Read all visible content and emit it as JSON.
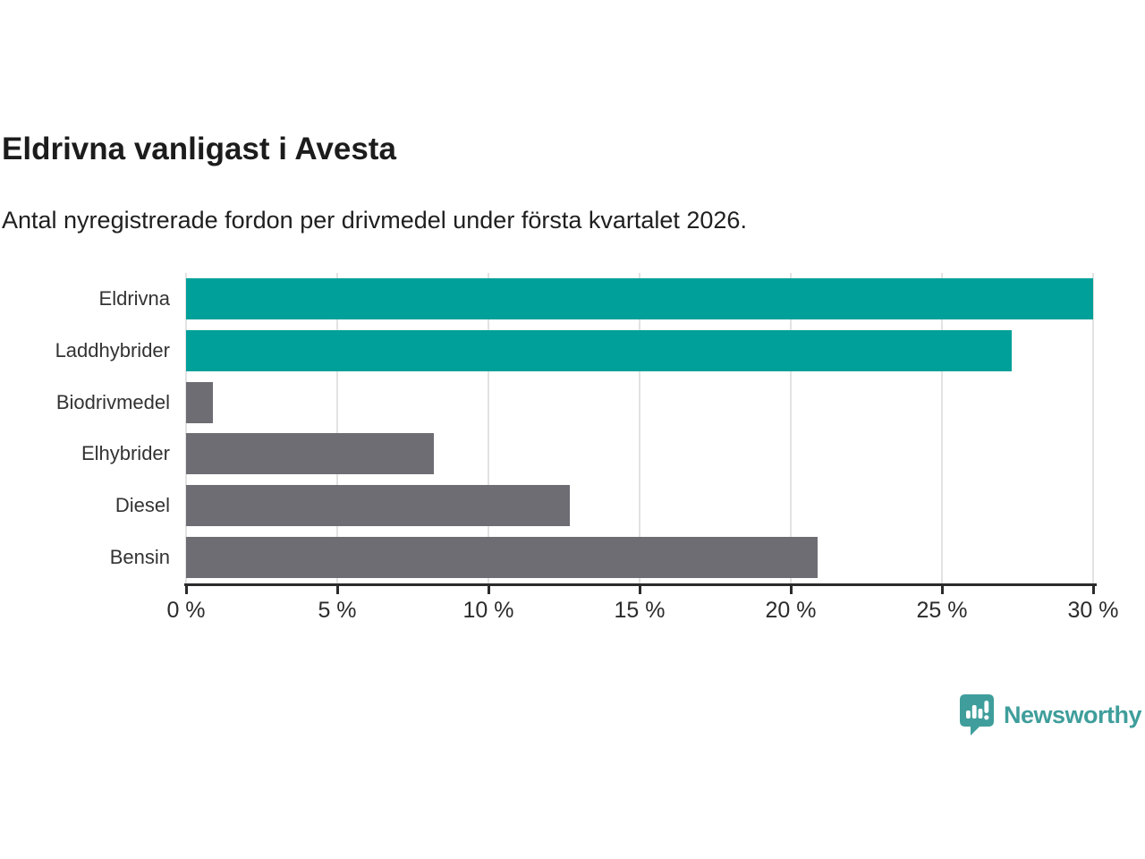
{
  "header": {
    "title": "Eldrivna vanligast i Avesta",
    "subtitle": "Antal nyregistrerade fordon per drivmedel under första kvartalet 2026."
  },
  "chart_data": {
    "type": "bar",
    "orientation": "horizontal",
    "title": "Eldrivna vanligast i Avesta",
    "subtitle": "Antal nyregistrerade fordon per drivmedel under första kvartalet 2026.",
    "categories": [
      "Eldrivna",
      "Laddhybrider",
      "Biodrivmedel",
      "Elhybrider",
      "Diesel",
      "Bensin"
    ],
    "values": [
      30.0,
      27.3,
      0.9,
      8.2,
      12.7,
      20.9
    ],
    "unit": "%",
    "bar_colors": [
      "#00a09a",
      "#00a09a",
      "#6d6d73",
      "#6d6d73",
      "#6d6d73",
      "#6d6d73"
    ],
    "highlight_color": "#00a09a",
    "default_color": "#6d6d73",
    "xlim": [
      0,
      30
    ],
    "x_ticks": [
      0,
      5,
      10,
      15,
      20,
      25,
      30
    ],
    "x_tick_labels": [
      "0 %",
      "5 %",
      "10 %",
      "15 %",
      "20 %",
      "25 %",
      "30 %"
    ],
    "grid": true,
    "gridline_color": "#e2e2e2",
    "legend": false,
    "xlabel": "",
    "ylabel": ""
  },
  "footer": {
    "brand": "Newsworthy",
    "brand_color": "#3f9e9b",
    "logo_icon": "newsworthy-speech-bubble-bar-chart-icon"
  }
}
